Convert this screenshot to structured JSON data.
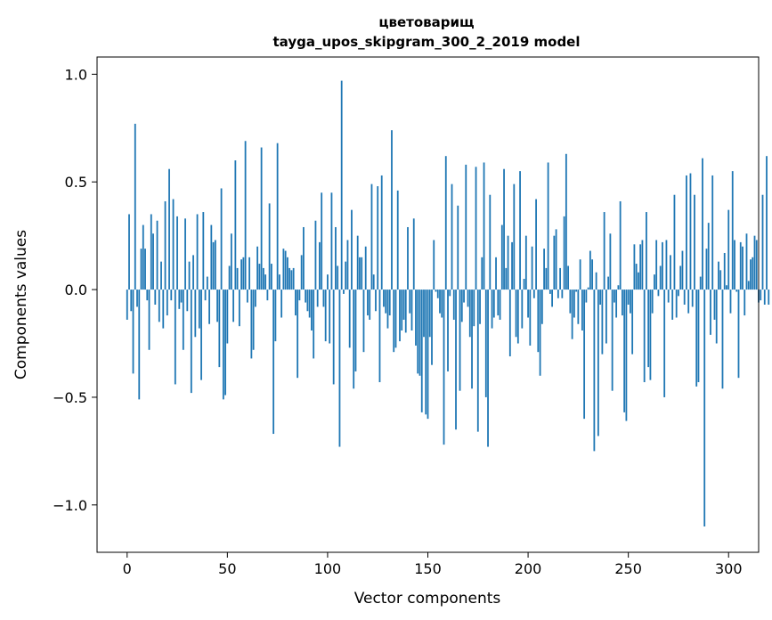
{
  "chart_data": {
    "type": "bar",
    "title_line1": "цветоварищ",
    "title_line2": "tayga_upos_skipgram_300_2_2019 model",
    "xlabel": "Vector components",
    "ylabel": "Components values",
    "xlim": [
      -15,
      315
    ],
    "ylim": [
      -1.22,
      1.08
    ],
    "xticks": [
      0,
      50,
      100,
      150,
      200,
      250,
      300
    ],
    "yticks": [
      -1.0,
      -0.5,
      0.0,
      0.5,
      1.0
    ],
    "xtick_labels": [
      "0",
      "50",
      "100",
      "150",
      "200",
      "250",
      "300"
    ],
    "ytick_labels": [
      "−1.0",
      "−0.5",
      "0.0",
      "0.5",
      "1.0"
    ],
    "grid": false,
    "bar_color": "#1f77b4",
    "series": [
      {
        "values": [
          -0.14,
          0.35,
          -0.1,
          -0.39,
          0.77,
          -0.08,
          -0.51,
          0.19,
          0.3,
          0.19,
          -0.05,
          -0.28,
          0.35,
          0.26,
          -0.07,
          0.32,
          -0.15,
          0.13,
          -0.18,
          0.41,
          -0.12,
          0.56,
          -0.05,
          0.42,
          -0.44,
          0.34,
          -0.09,
          -0.06,
          -0.28,
          0.33,
          -0.1,
          0.13,
          -0.48,
          0.16,
          -0.22,
          0.35,
          -0.18,
          -0.42,
          0.36,
          -0.05,
          0.06,
          -0.16,
          0.3,
          0.22,
          0.23,
          -0.15,
          -0.36,
          0.47,
          -0.51,
          -0.49,
          -0.25,
          0.11,
          0.26,
          -0.15,
          0.6,
          0.1,
          -0.17,
          0.14,
          0.15,
          0.69,
          -0.06,
          0.15,
          -0.32,
          -0.28,
          -0.08,
          0.2,
          0.12,
          0.66,
          0.1,
          0.07,
          -0.05,
          0.4,
          0.12,
          -0.67,
          -0.24,
          0.68,
          0.07,
          -0.13,
          0.19,
          0.18,
          0.15,
          0.1,
          0.09,
          0.1,
          -0.12,
          -0.41,
          -0.05,
          0.16,
          0.29,
          -0.06,
          -0.1,
          -0.13,
          -0.19,
          -0.32,
          0.32,
          -0.08,
          0.22,
          0.45,
          -0.08,
          -0.24,
          0.07,
          -0.25,
          0.45,
          -0.44,
          0.29,
          0.11,
          -0.73,
          0.97,
          -0.02,
          0.13,
          0.23,
          -0.27,
          0.37,
          -0.46,
          -0.38,
          0.25,
          0.15,
          0.15,
          -0.29,
          0.2,
          -0.12,
          -0.14,
          0.49,
          0.07,
          -0.1,
          0.48,
          -0.43,
          0.53,
          -0.08,
          -0.11,
          -0.18,
          -0.12,
          0.74,
          -0.29,
          -0.27,
          0.46,
          -0.24,
          -0.19,
          -0.14,
          -0.2,
          0.29,
          -0.11,
          -0.19,
          0.33,
          -0.26,
          -0.39,
          -0.4,
          -0.57,
          -0.22,
          -0.58,
          -0.6,
          -0.22,
          -0.35,
          0.23,
          -0.01,
          -0.04,
          -0.11,
          -0.13,
          -0.72,
          0.62,
          -0.38,
          -0.03,
          0.49,
          -0.14,
          -0.65,
          0.39,
          -0.47,
          -0.15,
          -0.06,
          0.58,
          -0.08,
          -0.22,
          -0.46,
          -0.17,
          0.57,
          -0.66,
          -0.16,
          0.15,
          0.59,
          -0.5,
          -0.73,
          0.44,
          -0.18,
          -0.13,
          0.15,
          -0.12,
          -0.14,
          0.3,
          0.56,
          0.1,
          0.25,
          -0.31,
          0.22,
          0.49,
          -0.22,
          -0.25,
          0.55,
          -0.18,
          0.05,
          0.25,
          -0.13,
          -0.26,
          0.2,
          -0.04,
          0.42,
          -0.29,
          -0.4,
          -0.16,
          0.19,
          0.1,
          0.59,
          -0.02,
          -0.08,
          0.25,
          0.28,
          -0.04,
          0.1,
          -0.04,
          0.34,
          0.63,
          0.11,
          -0.11,
          -0.23,
          -0.13,
          -0.01,
          -0.16,
          0.14,
          -0.19,
          -0.6,
          -0.06,
          0.01,
          0.18,
          0.14,
          -0.75,
          0.08,
          -0.68,
          -0.07,
          -0.3,
          0.36,
          -0.25,
          0.06,
          0.26,
          -0.47,
          -0.06,
          -0.13,
          0.02,
          0.41,
          -0.12,
          -0.57,
          -0.61,
          -0.07,
          -0.11,
          -0.3,
          0.21,
          0.12,
          0.08,
          0.21,
          0.23,
          -0.43,
          0.36,
          -0.36,
          -0.42,
          -0.11,
          0.07,
          0.23,
          -0.03,
          0.11,
          0.22,
          -0.5,
          0.23,
          -0.06,
          0.16,
          -0.14,
          0.44,
          -0.13,
          -0.03,
          0.11,
          0.18,
          -0.07,
          0.53,
          -0.11,
          0.54,
          -0.08,
          0.44,
          -0.45,
          -0.43,
          0.06,
          0.61,
          -1.1,
          0.19,
          0.31,
          -0.21,
          0.53,
          -0.14,
          -0.25,
          0.13,
          0.09,
          -0.46,
          0.17,
          0.02,
          0.37,
          -0.11,
          0.55,
          0.23,
          -0.01,
          -0.41,
          0.22,
          0.2,
          -0.12,
          0.26,
          0.04,
          0.14,
          0.15,
          0.25,
          0.23,
          -0.06,
          -0.05,
          0.44,
          -0.07,
          0.62,
          -0.07
        ]
      }
    ]
  }
}
